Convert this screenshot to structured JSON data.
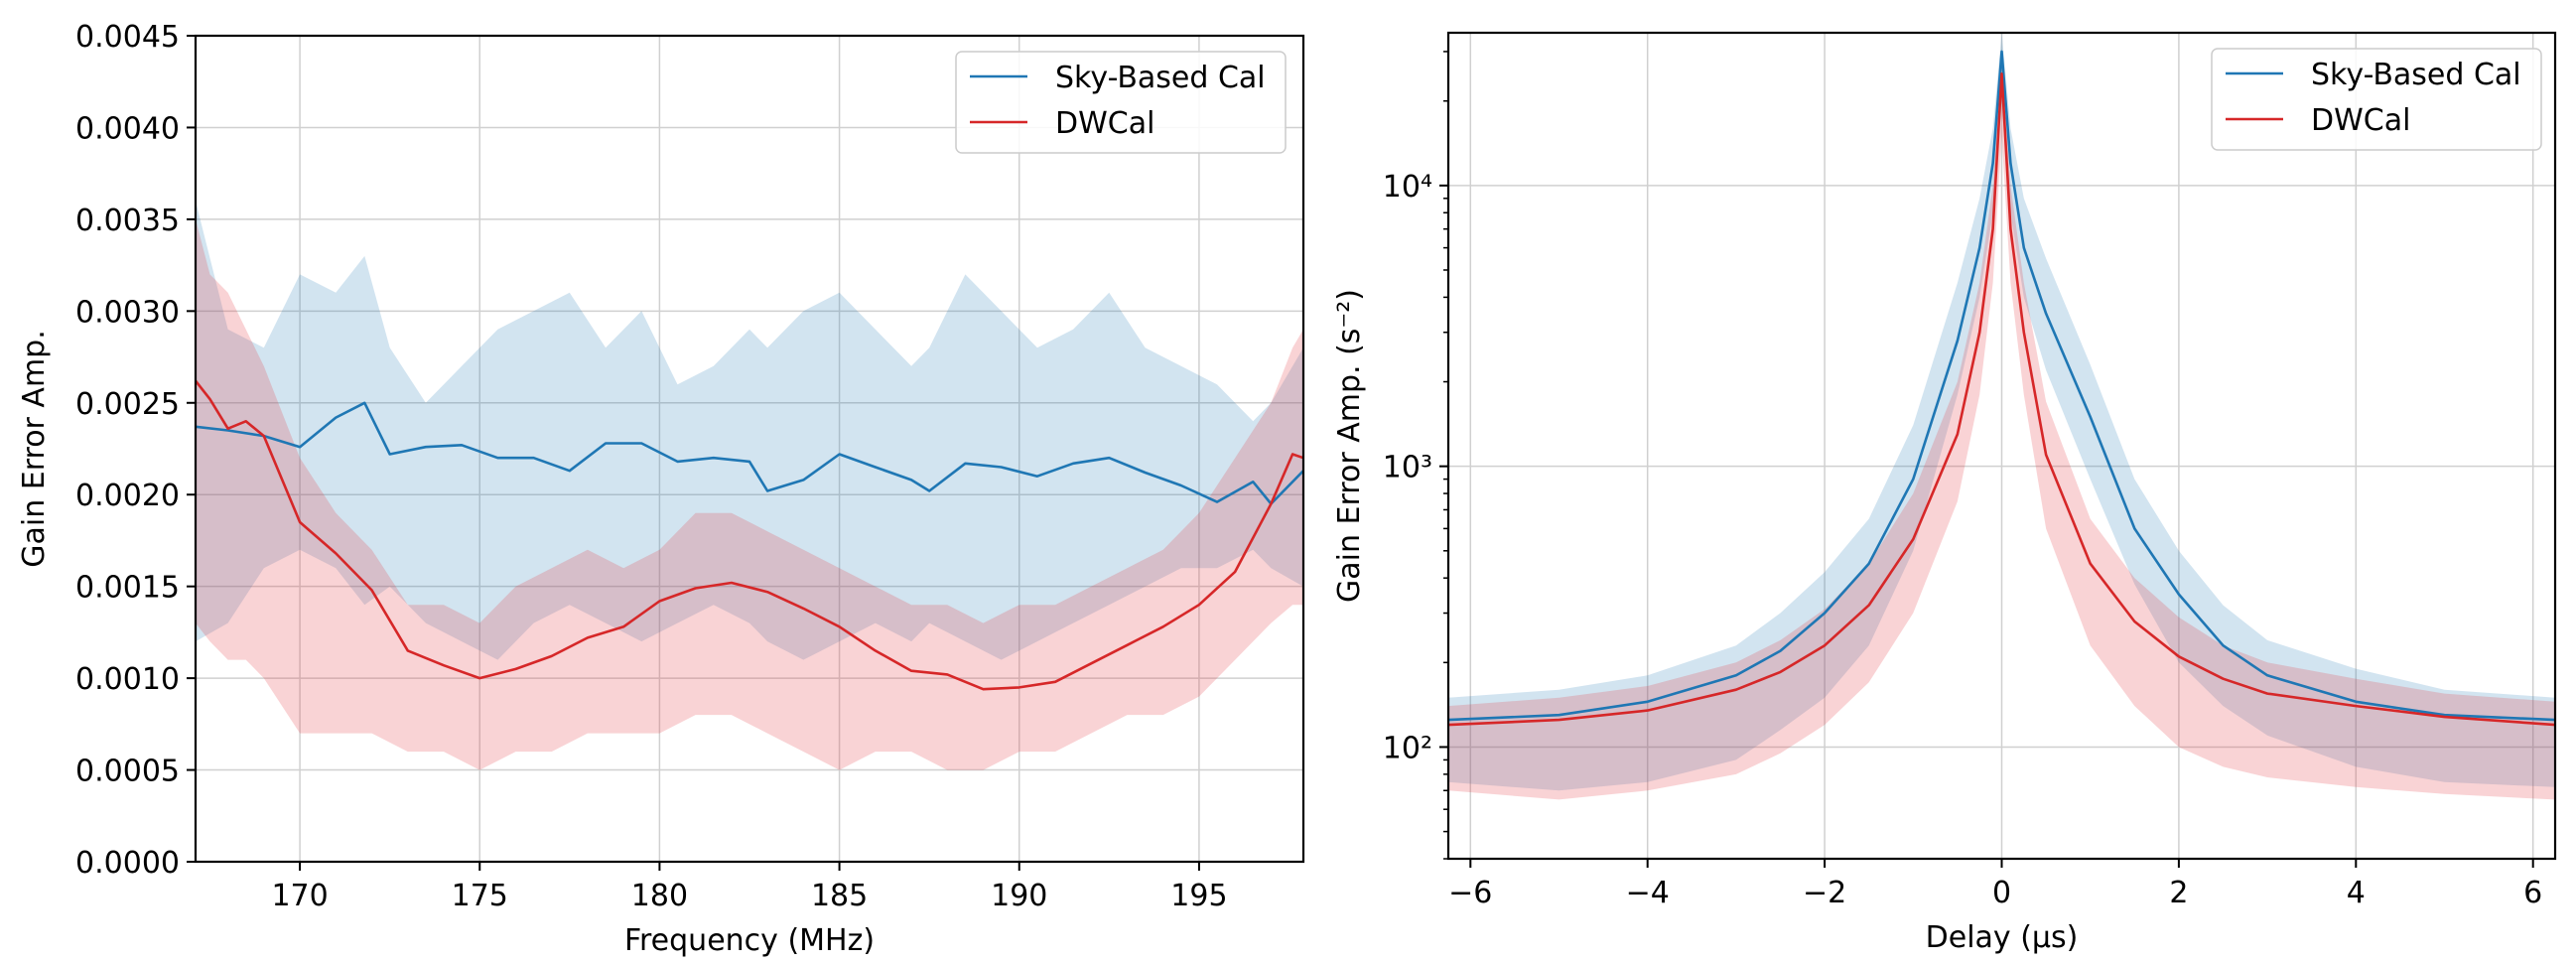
{
  "chart_data": [
    {
      "type": "line",
      "title": "",
      "xlabel": "Frequency (MHz)",
      "ylabel": "Gain Error Amp.",
      "xlim": [
        167.1,
        197.9
      ],
      "ylim": [
        0,
        0.0045
      ],
      "yscale": "linear",
      "grid": true,
      "legend_position": "top-right",
      "x_ticks": [
        170,
        175,
        180,
        185,
        190,
        195
      ],
      "x_tick_labels": [
        "170",
        "175",
        "180",
        "185",
        "190",
        "195"
      ],
      "y_ticks": [
        0,
        0.0005,
        0.001,
        0.0015,
        0.002,
        0.0025,
        0.003,
        0.0035,
        0.004,
        0.0045
      ],
      "y_tick_labels": [
        "0.0000",
        "0.0005",
        "0.0010",
        "0.0015",
        "0.0020",
        "0.0025",
        "0.0030",
        "0.0035",
        "0.0040",
        "0.0045"
      ],
      "series": [
        {
          "name": "Sky-Based Cal",
          "color": "#1f77b4",
          "band_color": "#1f77b4",
          "x": [
            167.1,
            168,
            169,
            170,
            171,
            171.8,
            172.5,
            173.5,
            174.5,
            175.5,
            176.5,
            177.5,
            178.5,
            179.5,
            180.5,
            181.5,
            182.5,
            183,
            184,
            185,
            186,
            187,
            187.5,
            188.5,
            189.5,
            190.5,
            191.5,
            192.5,
            193.5,
            194.5,
            195.5,
            196.5,
            197,
            197.9
          ],
          "values": [
            0.00237,
            0.00235,
            0.00232,
            0.00226,
            0.00242,
            0.0025,
            0.00222,
            0.00226,
            0.00227,
            0.0022,
            0.0022,
            0.00213,
            0.00228,
            0.00228,
            0.00218,
            0.0022,
            0.00218,
            0.00202,
            0.00208,
            0.00222,
            0.00215,
            0.00208,
            0.00202,
            0.00217,
            0.00215,
            0.0021,
            0.00217,
            0.0022,
            0.00212,
            0.00205,
            0.00196,
            0.00207,
            0.00195,
            0.00213
          ],
          "band_upper": [
            0.0036,
            0.0029,
            0.0028,
            0.0032,
            0.0031,
            0.0033,
            0.0028,
            0.0025,
            0.0027,
            0.0029,
            0.003,
            0.0031,
            0.0028,
            0.003,
            0.0026,
            0.0027,
            0.0029,
            0.0028,
            0.003,
            0.0031,
            0.0029,
            0.0027,
            0.0028,
            0.0032,
            0.003,
            0.0028,
            0.0029,
            0.0031,
            0.0028,
            0.0027,
            0.0026,
            0.0024,
            0.0025,
            0.0028
          ],
          "band_lower": [
            0.0012,
            0.0013,
            0.0016,
            0.0017,
            0.0016,
            0.0014,
            0.0015,
            0.0013,
            0.0012,
            0.0011,
            0.0013,
            0.0014,
            0.0013,
            0.0012,
            0.0013,
            0.0014,
            0.0013,
            0.0012,
            0.0011,
            0.0012,
            0.0013,
            0.0012,
            0.0013,
            0.0012,
            0.0011,
            0.0012,
            0.0013,
            0.0014,
            0.0015,
            0.0016,
            0.0016,
            0.0017,
            0.0016,
            0.0015
          ]
        },
        {
          "name": "DWCal",
          "color": "#d62728",
          "band_color": "#e3383f",
          "x": [
            167.1,
            167.5,
            168,
            168.5,
            169,
            170,
            171,
            172,
            173,
            174,
            175,
            176,
            177,
            178,
            179,
            180,
            181,
            182,
            183,
            184,
            185,
            186,
            187,
            188,
            189,
            190,
            191,
            192,
            193,
            194,
            195,
            196,
            197,
            197.6,
            197.9
          ],
          "values": [
            0.00262,
            0.00252,
            0.00236,
            0.0024,
            0.00232,
            0.00185,
            0.00168,
            0.00148,
            0.00115,
            0.00107,
            0.001,
            0.00105,
            0.00112,
            0.00122,
            0.00128,
            0.00142,
            0.00149,
            0.00152,
            0.00147,
            0.00138,
            0.00128,
            0.00115,
            0.00104,
            0.00102,
            0.00094,
            0.00095,
            0.00098,
            0.00108,
            0.00118,
            0.00128,
            0.0014,
            0.00158,
            0.00195,
            0.00222,
            0.0022
          ],
          "band_upper": [
            0.0035,
            0.0032,
            0.0031,
            0.0029,
            0.0027,
            0.0022,
            0.0019,
            0.0017,
            0.0014,
            0.0014,
            0.0013,
            0.0015,
            0.0016,
            0.0017,
            0.0016,
            0.0017,
            0.0019,
            0.0019,
            0.0018,
            0.0017,
            0.0016,
            0.0015,
            0.0014,
            0.0014,
            0.0013,
            0.0014,
            0.0014,
            0.0015,
            0.0016,
            0.0017,
            0.0019,
            0.0022,
            0.0025,
            0.0028,
            0.0029
          ],
          "band_lower": [
            0.0013,
            0.0012,
            0.0011,
            0.0011,
            0.001,
            0.0007,
            0.0007,
            0.0007,
            0.0006,
            0.0006,
            0.0005,
            0.0006,
            0.0006,
            0.0007,
            0.0007,
            0.0007,
            0.0008,
            0.0008,
            0.0007,
            0.0006,
            0.0005,
            0.0006,
            0.0006,
            0.0005,
            0.0005,
            0.0006,
            0.0006,
            0.0007,
            0.0008,
            0.0008,
            0.0009,
            0.0011,
            0.0013,
            0.0014,
            0.0014
          ]
        }
      ]
    },
    {
      "type": "line",
      "title": "",
      "xlabel": "Delay (μs)",
      "ylabel": "Gain Error Amp. (s⁻²)",
      "xlim": [
        -6.25,
        6.25
      ],
      "ylim": [
        40,
        35000
      ],
      "yscale": "log",
      "grid": true,
      "legend_position": "top-right",
      "x_ticks": [
        -6,
        -4,
        -2,
        0,
        2,
        4,
        6
      ],
      "x_tick_labels": [
        "−6",
        "−4",
        "−2",
        "0",
        "2",
        "4",
        "6"
      ],
      "y_ticks": [
        100,
        1000,
        10000
      ],
      "y_tick_labels": [
        "10²",
        "10³",
        "10⁴"
      ],
      "series": [
        {
          "name": "Sky-Based Cal",
          "color": "#1f77b4",
          "band_color": "#1f77b4",
          "x": [
            -6.25,
            -5,
            -4,
            -3,
            -2.5,
            -2,
            -1.5,
            -1,
            -0.5,
            -0.25,
            -0.1,
            0,
            0.1,
            0.25,
            0.5,
            1,
            1.5,
            2,
            2.5,
            3,
            4,
            5,
            6.25
          ],
          "values": [
            125,
            130,
            145,
            180,
            220,
            300,
            450,
            900,
            2800,
            6000,
            12000,
            30000,
            12000,
            6000,
            3500,
            1500,
            600,
            350,
            230,
            180,
            145,
            130,
            125
          ],
          "band_upper": [
            150,
            160,
            180,
            230,
            300,
            420,
            650,
            1400,
            4500,
            9000,
            16000,
            35000,
            16000,
            9000,
            5500,
            2300,
            900,
            500,
            320,
            240,
            190,
            160,
            150
          ],
          "band_lower": [
            75,
            70,
            75,
            90,
            115,
            150,
            230,
            500,
            1800,
            4000,
            8000,
            20000,
            8000,
            4000,
            2200,
            900,
            380,
            200,
            140,
            110,
            85,
            75,
            72
          ]
        },
        {
          "name": "DWCal",
          "color": "#d62728",
          "band_color": "#e3383f",
          "x": [
            -6.25,
            -5,
            -4,
            -3,
            -2.5,
            -2,
            -1.5,
            -1,
            -0.5,
            -0.25,
            -0.1,
            0,
            0.1,
            0.25,
            0.5,
            1,
            1.5,
            2,
            2.5,
            3,
            4,
            5,
            6.25
          ],
          "values": [
            120,
            125,
            135,
            160,
            185,
            230,
            320,
            550,
            1300,
            3000,
            7000,
            25000,
            7000,
            3000,
            1100,
            450,
            280,
            210,
            175,
            155,
            140,
            128,
            120
          ],
          "band_upper": [
            140,
            150,
            165,
            200,
            240,
            310,
            450,
            800,
            2000,
            4500,
            10000,
            28000,
            10000,
            4500,
            1700,
            650,
            400,
            290,
            230,
            200,
            175,
            155,
            145
          ],
          "band_lower": [
            70,
            65,
            70,
            80,
            95,
            120,
            170,
            300,
            750,
            1800,
            4500,
            15000,
            4500,
            1800,
            600,
            230,
            140,
            100,
            85,
            78,
            72,
            68,
            65
          ]
        }
      ]
    }
  ]
}
